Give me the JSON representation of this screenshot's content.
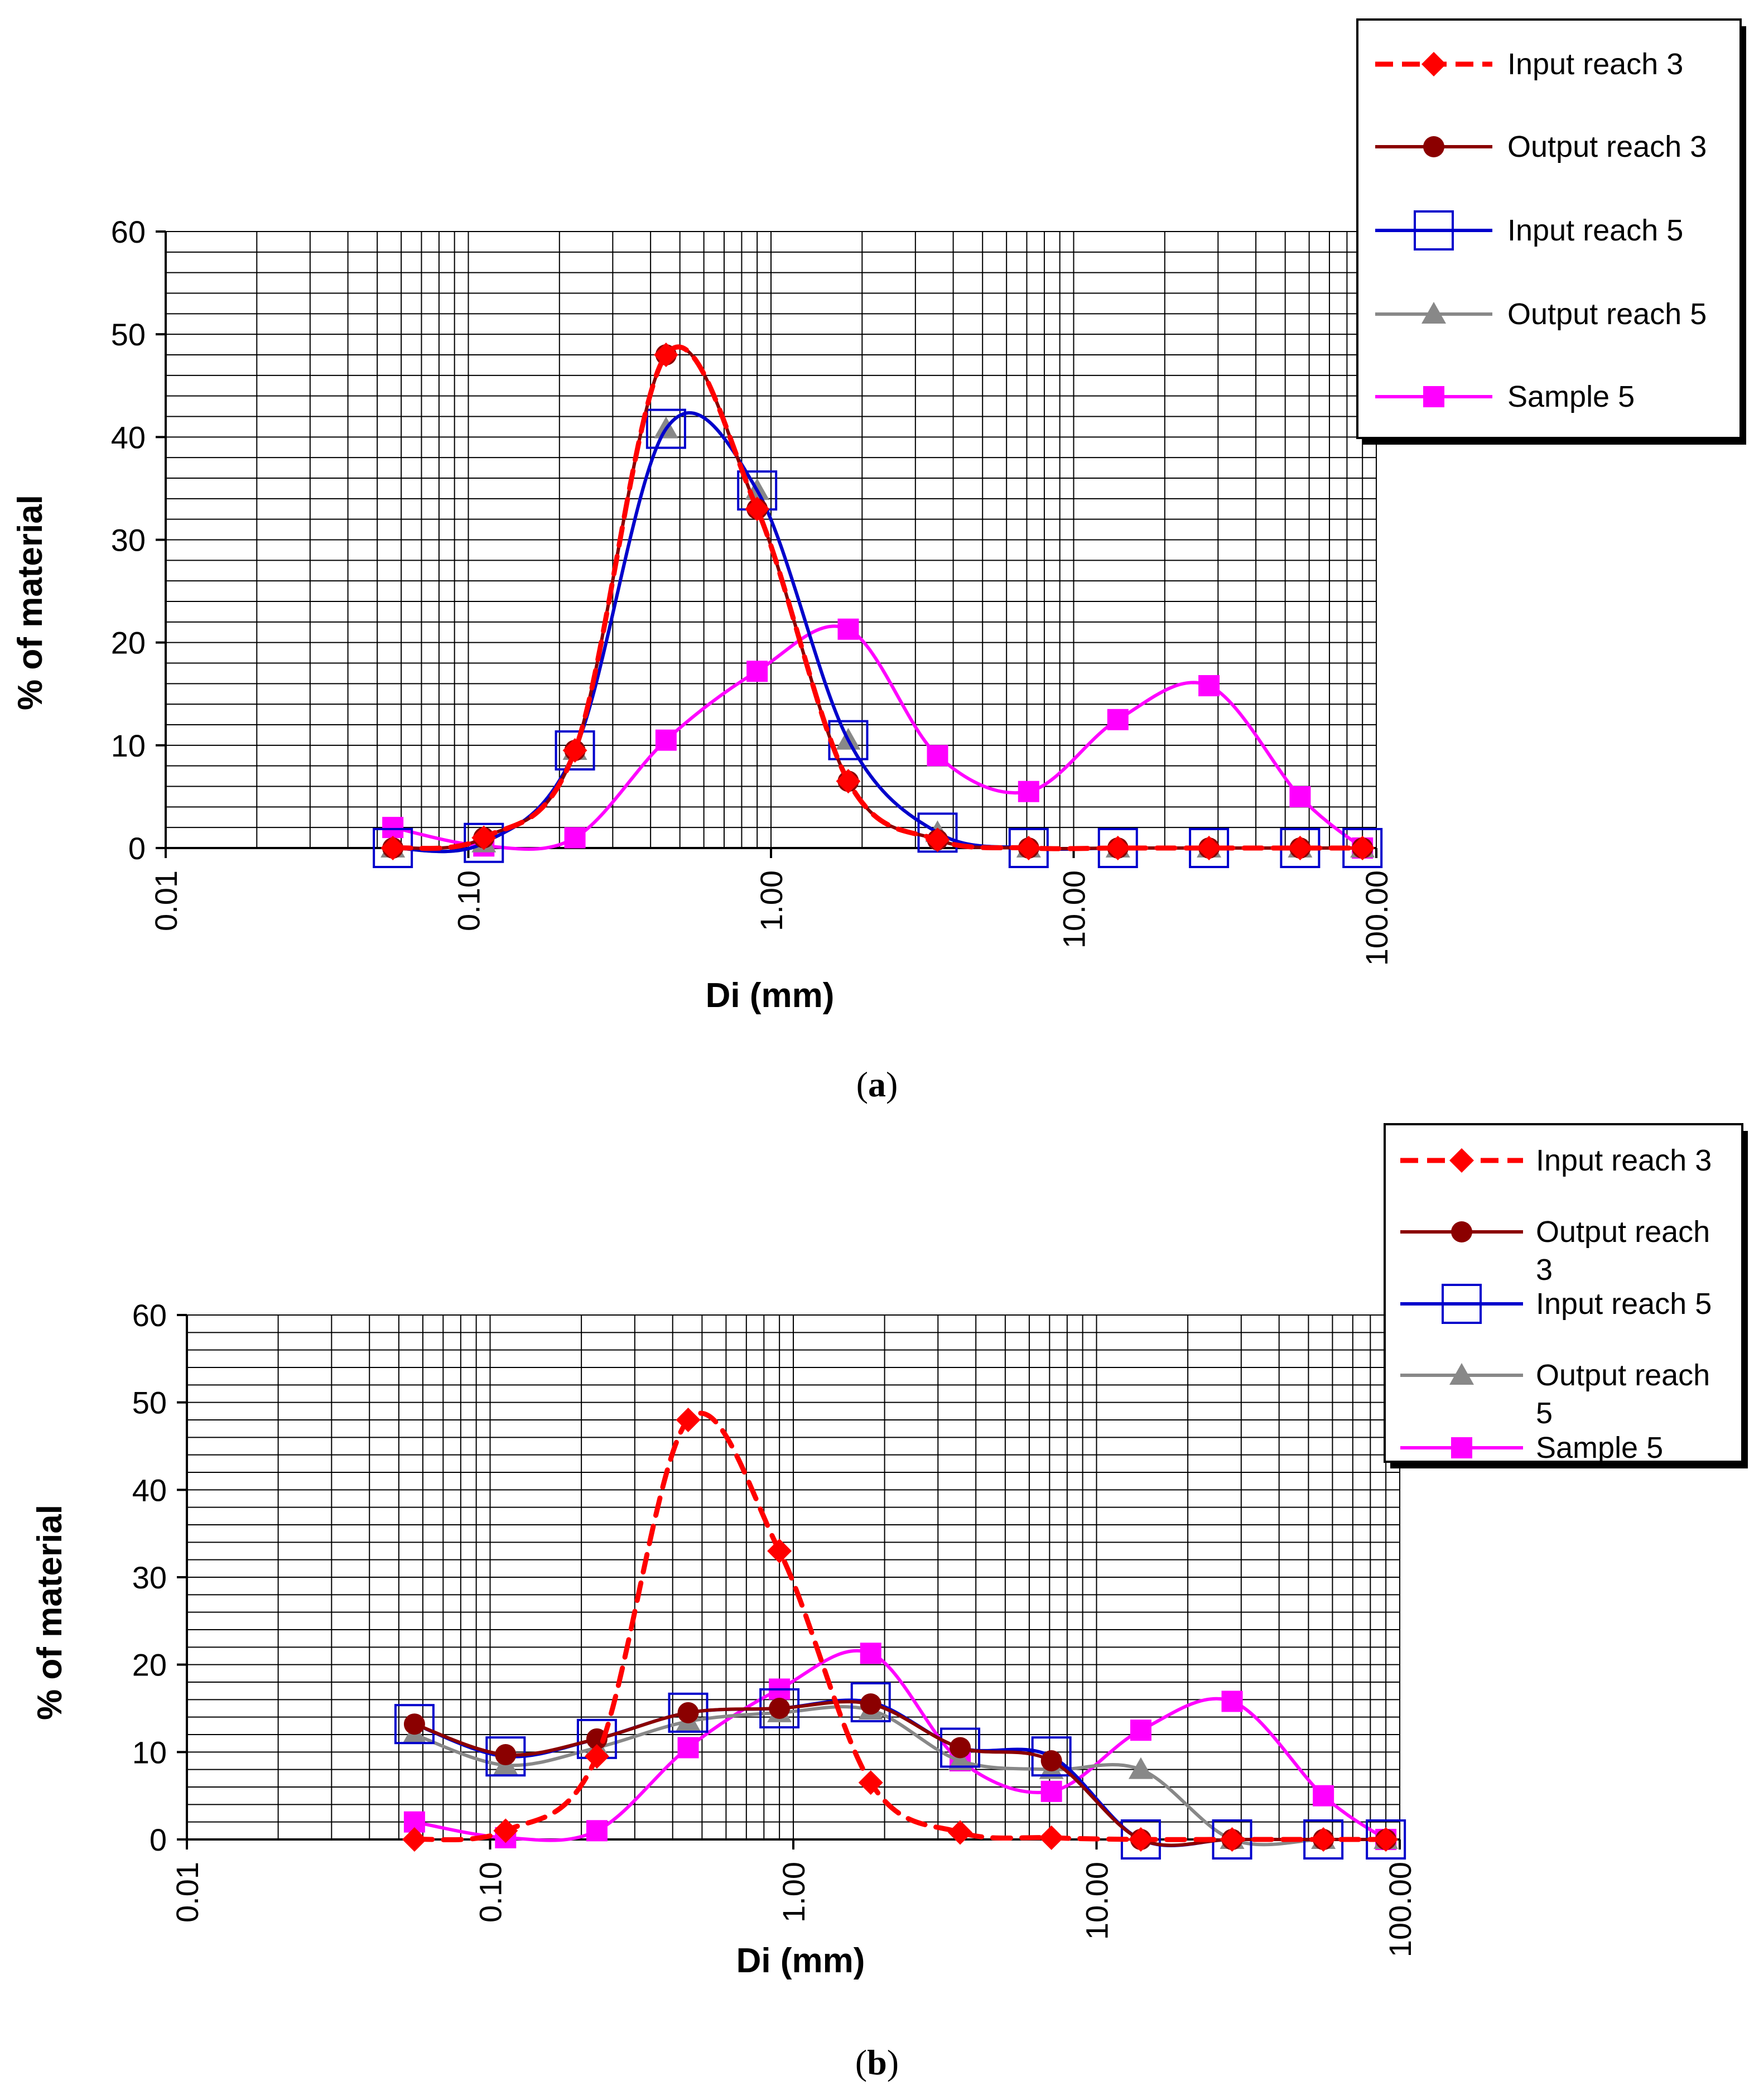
{
  "chart_data": [
    {
      "type": "line",
      "panel": "a",
      "caption_letter": "a",
      "xscale": "log",
      "xlim": [
        0.01,
        100
      ],
      "ylim": [
        0,
        60
      ],
      "xticks": [
        "0.01",
        "0.10",
        "1.00",
        "10.00",
        "100.00"
      ],
      "yticks": [
        "0",
        "10",
        "20",
        "30",
        "40",
        "50",
        "60"
      ],
      "xlabel": "Di (mm)",
      "ylabel": "% of material",
      "legend": "top-right",
      "x": [
        0.0563,
        0.1125,
        0.225,
        0.45,
        0.9,
        1.8,
        3.55,
        7.1,
        14,
        28,
        56,
        90
      ],
      "series": [
        {
          "name": "Input reach 3",
          "color": "#ff0000",
          "marker": "diamond",
          "dash": true,
          "values": [
            0,
            1,
            9.5,
            48,
            33,
            6.5,
            0.8,
            0,
            0,
            0,
            0,
            0
          ]
        },
        {
          "name": "Output reach 3",
          "color": "#8b0000",
          "marker": "circle",
          "dash": false,
          "values": [
            0,
            1,
            9.5,
            48,
            33,
            6.5,
            0.8,
            0,
            0,
            0,
            0,
            0
          ]
        },
        {
          "name": "Input reach 5",
          "color": "#0000cc",
          "marker": "square-open",
          "dash": false,
          "values": [
            0,
            0.5,
            9.5,
            40.8,
            34.8,
            10.5,
            1.5,
            0,
            0,
            0,
            0,
            0
          ]
        },
        {
          "name": "Output reach 5",
          "color": "#888888",
          "marker": "triangle",
          "dash": false,
          "values": [
            0,
            0.5,
            9.5,
            40.8,
            34.8,
            10.5,
            1.5,
            0,
            0,
            0,
            0,
            0
          ]
        },
        {
          "name": "Sample 5",
          "color": "#ff00ff",
          "marker": "square",
          "dash": false,
          "values": [
            2,
            0.2,
            1,
            10.5,
            17.2,
            21.3,
            9,
            5.5,
            12.5,
            15.8,
            5,
            0
          ]
        }
      ]
    },
    {
      "type": "line",
      "panel": "b",
      "caption_letter": "b",
      "xscale": "log",
      "xlim": [
        0.01,
        100
      ],
      "ylim": [
        0,
        60
      ],
      "xticks": [
        "0.01",
        "0.10",
        "1.00",
        "10.00",
        "100.00"
      ],
      "yticks": [
        "0",
        "10",
        "20",
        "30",
        "40",
        "50",
        "60"
      ],
      "xlabel": "Di (mm)",
      "ylabel": "% of material",
      "legend": "top-right",
      "x": [
        0.0563,
        0.1125,
        0.225,
        0.45,
        0.9,
        1.8,
        3.55,
        7.1,
        14,
        28,
        56,
        90
      ],
      "series": [
        {
          "name": "Input reach 3",
          "color": "#ff0000",
          "marker": "diamond",
          "dash": true,
          "values": [
            0,
            1,
            9.5,
            48,
            33,
            6.5,
            0.8,
            0.2,
            0,
            0,
            0,
            0
          ]
        },
        {
          "name": "Output reach 3",
          "color": "#8b0000",
          "marker": "circle",
          "dash": false,
          "values": [
            13.2,
            9.7,
            11.5,
            14.5,
            15,
            15.5,
            10.5,
            9,
            0,
            0,
            0,
            0
          ]
        },
        {
          "name": "Input reach 5",
          "color": "#0000cc",
          "marker": "square-open",
          "dash": false,
          "values": [
            13.2,
            9.5,
            11.5,
            14.5,
            15,
            15.7,
            10.5,
            9.5,
            0,
            0,
            0,
            0
          ]
        },
        {
          "name": "Output reach 5",
          "color": "#888888",
          "marker": "triangle",
          "dash": false,
          "values": [
            12,
            8.5,
            10.5,
            13.5,
            14.5,
            14.8,
            9,
            8,
            8,
            0,
            0,
            0
          ]
        },
        {
          "name": "Sample 5",
          "color": "#ff00ff",
          "marker": "square",
          "dash": false,
          "values": [
            2,
            0.2,
            1,
            10.5,
            17.2,
            21.3,
            9,
            5.5,
            12.5,
            15.8,
            5,
            0
          ]
        }
      ]
    }
  ]
}
